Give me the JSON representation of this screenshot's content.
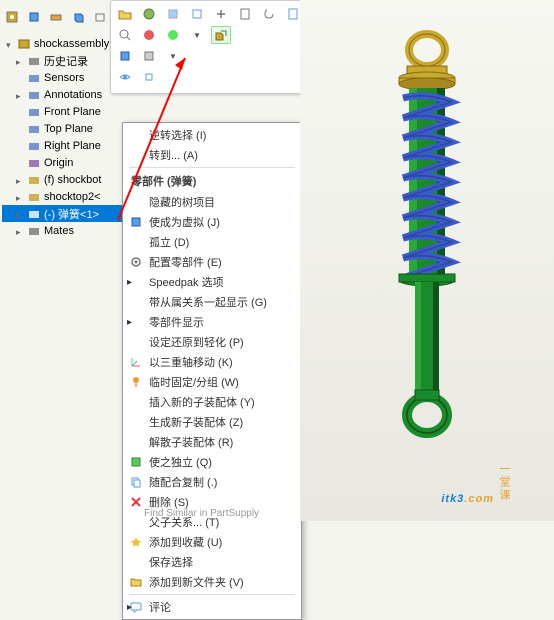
{
  "tree": {
    "root": "shockassembly",
    "items": [
      {
        "label": "历史记录",
        "indent": 14,
        "tri": "closed",
        "color": "#777"
      },
      {
        "label": "Sensors",
        "indent": 14,
        "tri": "",
        "color": "#5a7dc8"
      },
      {
        "label": "Annotations",
        "indent": 14,
        "tri": "closed",
        "color": "#5a7dc8"
      },
      {
        "label": "Front Plane",
        "indent": 14,
        "tri": "",
        "color": "#5a7dc8"
      },
      {
        "label": "Top Plane",
        "indent": 14,
        "tri": "",
        "color": "#5a7dc8"
      },
      {
        "label": "Right Plane",
        "indent": 14,
        "tri": "",
        "color": "#5a7dc8"
      },
      {
        "label": "Origin",
        "indent": 14,
        "tri": "",
        "color": "#8a5aa5"
      },
      {
        "label": "(f) shockbot",
        "indent": 14,
        "tri": "closed",
        "color": "#c8a030"
      },
      {
        "label": "shocktop2<",
        "indent": 14,
        "tri": "closed",
        "color": "#c8a030"
      },
      {
        "label": "(-) 弹簧<1>",
        "indent": 14,
        "tri": "closed",
        "color": "#c8a030",
        "sel": true
      },
      {
        "label": "Mates",
        "indent": 14,
        "tri": "closed",
        "color": "#777"
      }
    ]
  },
  "context_menu": {
    "top": [
      {
        "label": "逆转选择 (I)",
        "icon": ""
      },
      {
        "label": "转到... (A)",
        "icon": ""
      }
    ],
    "header": "零部件 (弹簧)",
    "items": [
      {
        "label": "隐藏的树项目",
        "icon": ""
      },
      {
        "label": "使成为虚拟 (J)",
        "icon": "cube-blue"
      },
      {
        "label": "孤立 (D)",
        "icon": ""
      },
      {
        "label": "配置零部件 (E)",
        "icon": "gear"
      },
      {
        "label": "Speedpak 选项",
        "icon": "",
        "arrow": true
      },
      {
        "label": "带从属关系一起显示 (G)",
        "icon": ""
      },
      {
        "label": "零部件显示",
        "icon": "",
        "arrow": true
      },
      {
        "label": "设定还原到轻化 (P)",
        "icon": ""
      },
      {
        "label": "以三重轴移动 (K)",
        "icon": "triad"
      },
      {
        "label": "临时固定/分组 (W)",
        "icon": "pin"
      },
      {
        "label": "插入新的子装配体 (Y)",
        "icon": ""
      },
      {
        "label": "生成新子装配体 (Z)",
        "icon": ""
      },
      {
        "label": "解散子装配体 (R)",
        "icon": ""
      },
      {
        "label": "使之独立 (Q)",
        "icon": "cube-green"
      },
      {
        "label": "随配合复制 (.)",
        "icon": "copy"
      },
      {
        "label": "删除 (S)",
        "icon": "x-red"
      },
      {
        "label": "父子关系... (T)",
        "icon": ""
      },
      {
        "label": "添加到收藏 (U)",
        "icon": "star"
      },
      {
        "label": "保存选择",
        "icon": ""
      },
      {
        "label": "添加到新文件夹 (V)",
        "icon": "folder"
      }
    ],
    "footer": [
      {
        "label": "评论",
        "icon": "comment",
        "arrow": true
      }
    ],
    "find_similar": "Find Similar in PartSupply"
  },
  "watermark": {
    "main": "itk3",
    "sub": "一堂课",
    "dotcom": ".com"
  },
  "model": {
    "cap_color": "#c9a830",
    "body_color": "#1a8a2a",
    "body_dark": "#0d5518",
    "spring_color": "#3a5cc8",
    "bg_top": "#f7f7f2",
    "bg_bot": "#e8e8e0"
  },
  "arrow": {
    "color": "#ff0000"
  }
}
